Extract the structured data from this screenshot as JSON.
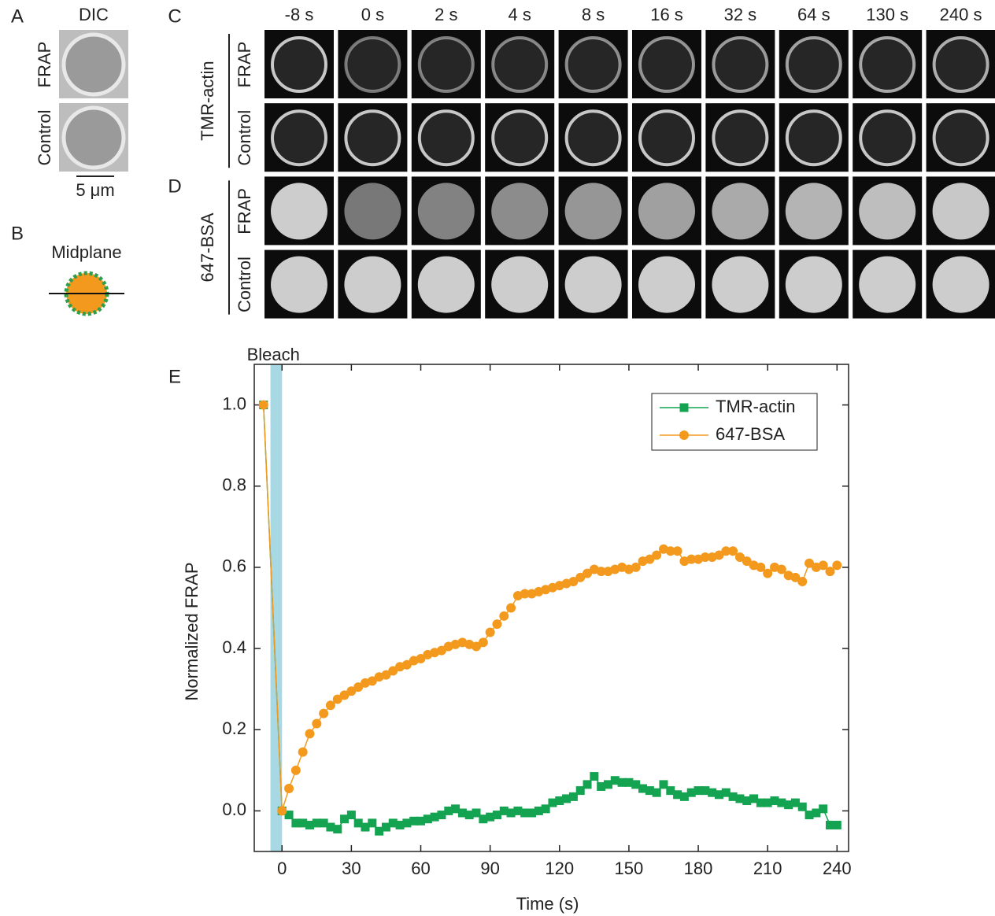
{
  "panel_labels": [
    "A",
    "B",
    "C",
    "D",
    "E"
  ],
  "dic": {
    "title": "DIC",
    "rows": [
      "FRAP",
      "Control"
    ],
    "scale_bar": "5 μm"
  },
  "midplane": {
    "title": "Midplane"
  },
  "microscopy": {
    "times": [
      "-8 s",
      "0 s",
      "2 s",
      "4 s",
      "8 s",
      "16 s",
      "32 s",
      "64 s",
      "130 s",
      "240 s"
    ],
    "groups": [
      {
        "name": "TMR-actin",
        "color": "#1aa35a",
        "rows": [
          "FRAP",
          "Control"
        ]
      },
      {
        "name": "647-BSA",
        "color": "#f39a2b",
        "rows": [
          "FRAP",
          "Control"
        ]
      }
    ]
  },
  "chart_data": {
    "type": "line",
    "annotation": {
      "text": "Bleach",
      "x": [
        -5,
        0
      ]
    },
    "x_label": "Time (s)",
    "y_label": "Normalized FRAP",
    "xlim": [
      -12,
      245
    ],
    "ylim": [
      -0.1,
      1.1
    ],
    "xticks": [
      0,
      30,
      60,
      90,
      120,
      150,
      180,
      210,
      240
    ],
    "yticks": [
      {
        "value": 0,
        "label": "0.0"
      },
      0.2,
      0.4,
      0.6,
      0.8,
      {
        "value": 1,
        "label": "1.0"
      }
    ],
    "legend": "upper right",
    "x": [
      -8,
      0,
      3,
      6,
      9,
      12,
      15,
      18,
      21,
      24,
      27,
      30,
      33,
      36,
      39,
      42,
      45,
      48,
      51,
      54,
      57,
      60,
      63,
      66,
      69,
      72,
      75,
      78,
      81,
      84,
      87,
      90,
      93,
      96,
      99,
      102,
      105,
      108,
      111,
      114,
      117,
      120,
      123,
      126,
      129,
      132,
      135,
      138,
      141,
      144,
      147,
      150,
      153,
      156,
      159,
      162,
      165,
      168,
      171,
      174,
      177,
      180,
      183,
      186,
      189,
      192,
      195,
      198,
      201,
      204,
      207,
      210,
      213,
      216,
      219,
      222,
      225,
      228,
      231,
      234,
      237,
      240
    ],
    "series": [
      {
        "name": "TMR-actin",
        "color": "#14a350",
        "marker": "square",
        "values": [
          1.0,
          0.0,
          -0.01,
          -0.03,
          -0.03,
          -0.035,
          -0.03,
          -0.03,
          -0.04,
          -0.045,
          -0.02,
          -0.01,
          -0.03,
          -0.04,
          -0.03,
          -0.05,
          -0.04,
          -0.03,
          -0.035,
          -0.03,
          -0.025,
          -0.025,
          -0.02,
          -0.015,
          -0.01,
          0.0,
          0.005,
          -0.005,
          -0.01,
          -0.005,
          -0.02,
          -0.015,
          -0.01,
          0.0,
          -0.005,
          0.0,
          -0.005,
          -0.005,
          0.0,
          0.005,
          0.02,
          0.025,
          0.03,
          0.035,
          0.05,
          0.065,
          0.085,
          0.06,
          0.065,
          0.075,
          0.07,
          0.07,
          0.065,
          0.055,
          0.05,
          0.045,
          0.065,
          0.05,
          0.04,
          0.035,
          0.045,
          0.05,
          0.05,
          0.045,
          0.04,
          0.045,
          0.035,
          0.03,
          0.025,
          0.03,
          0.02,
          0.02,
          0.025,
          0.02,
          0.015,
          0.02,
          0.01,
          -0.01,
          -0.005,
          0.005,
          -0.035,
          -0.035
        ]
      },
      {
        "name": "647-BSA",
        "color": "#f39a1e",
        "marker": "circle",
        "values": [
          1.0,
          0.0,
          0.055,
          0.1,
          0.145,
          0.19,
          0.215,
          0.24,
          0.26,
          0.275,
          0.285,
          0.295,
          0.305,
          0.315,
          0.32,
          0.33,
          0.335,
          0.345,
          0.355,
          0.36,
          0.37,
          0.375,
          0.385,
          0.39,
          0.395,
          0.405,
          0.41,
          0.415,
          0.41,
          0.405,
          0.415,
          0.44,
          0.46,
          0.48,
          0.5,
          0.53,
          0.535,
          0.535,
          0.54,
          0.545,
          0.55,
          0.555,
          0.56,
          0.565,
          0.575,
          0.585,
          0.595,
          0.59,
          0.59,
          0.595,
          0.6,
          0.595,
          0.6,
          0.615,
          0.62,
          0.63,
          0.645,
          0.64,
          0.64,
          0.615,
          0.62,
          0.62,
          0.625,
          0.625,
          0.63,
          0.64,
          0.64,
          0.625,
          0.615,
          0.605,
          0.6,
          0.585,
          0.6,
          0.595,
          0.58,
          0.575,
          0.565,
          0.61,
          0.6,
          0.605,
          0.59,
          0.605
        ]
      }
    ]
  }
}
